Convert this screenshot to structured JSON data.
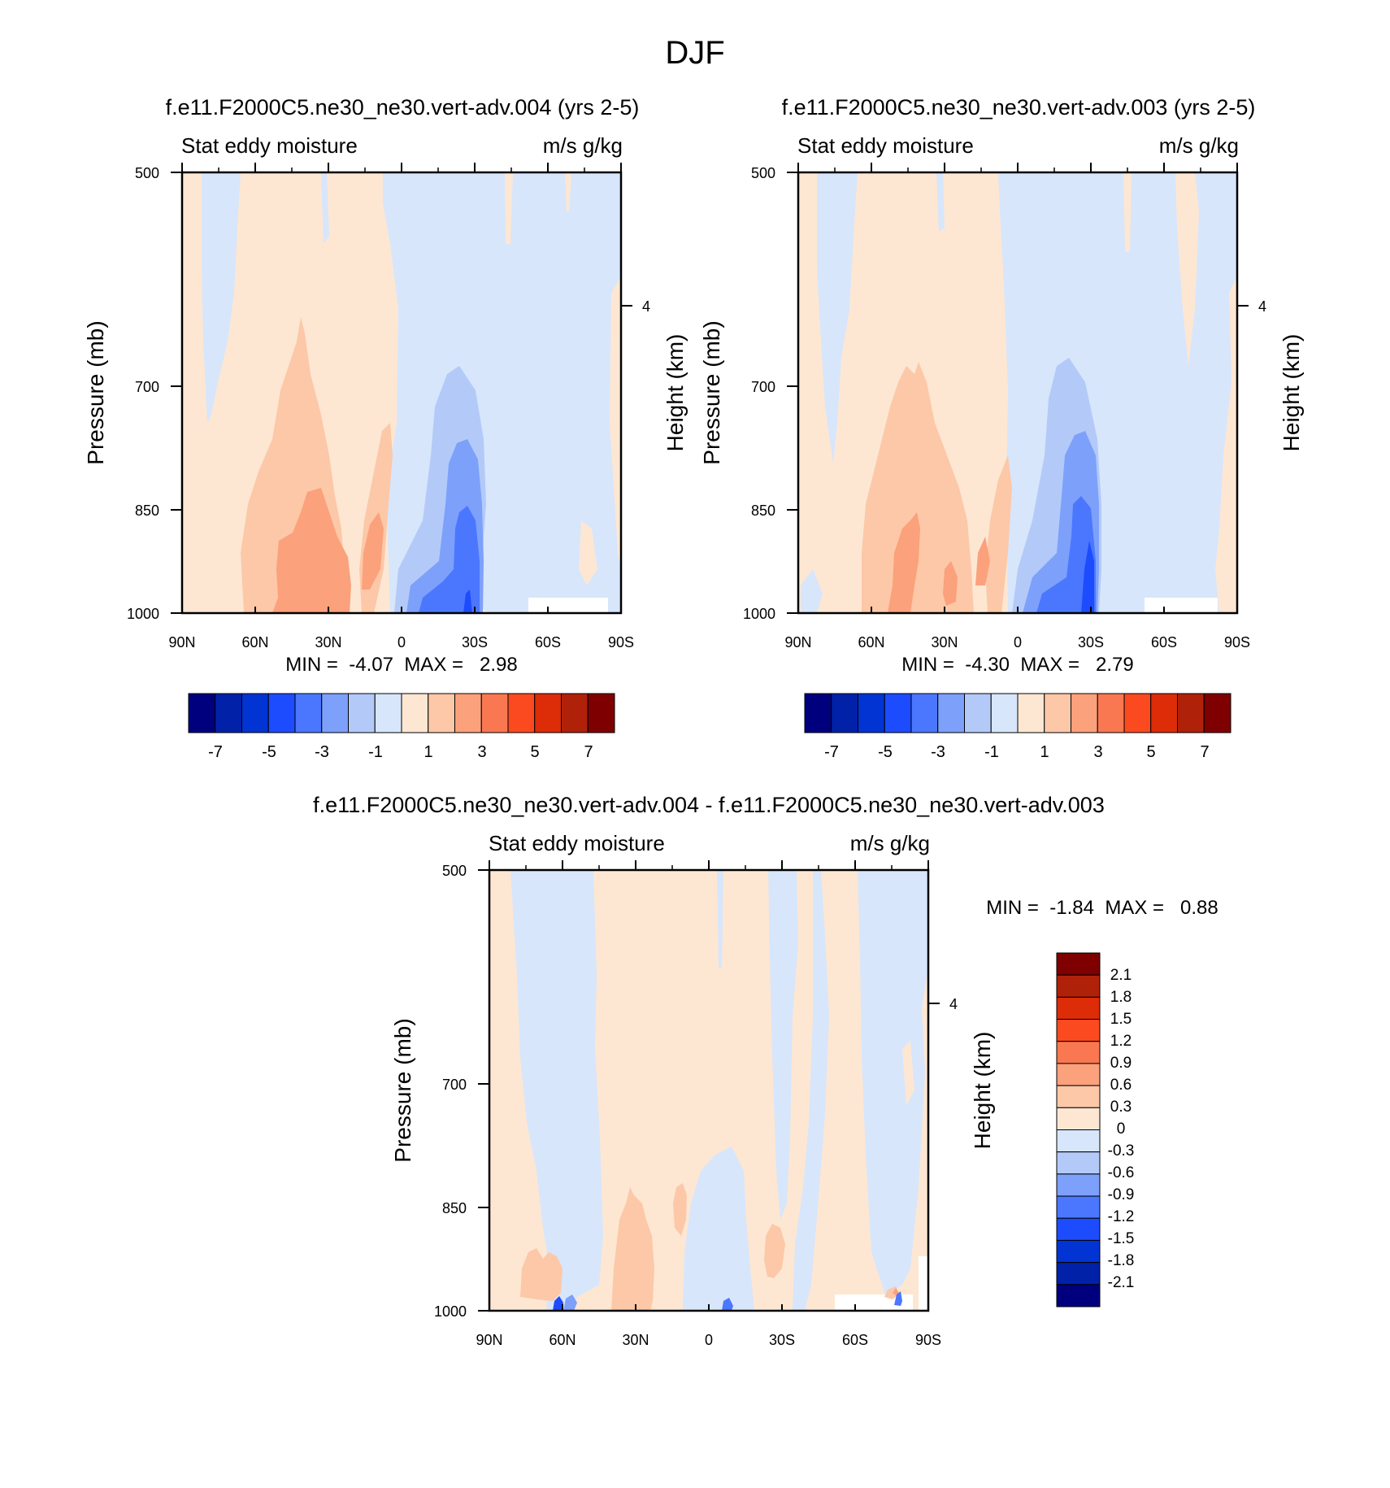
{
  "page": {
    "title": "DJF"
  },
  "palette": {
    "full": [
      "#00007f",
      "#0121a8",
      "#0234d4",
      "#1d4cff",
      "#4b77ff",
      "#7da0fb",
      "#b3caf9",
      "#d7e6fb",
      "#fde7d3",
      "#fcc8a8",
      "#fba17c",
      "#f97851",
      "#fb4a1f",
      "#dd2c08",
      "#b0210a",
      "#7f0000"
    ]
  },
  "colors": {
    "bg_blue": "#d7e6fb",
    "bg_orange": "#fde7d3",
    "lvl2_blue": "#b3caf9",
    "lvl3_blue": "#7da0fb",
    "lvl4_blue": "#4b77ff",
    "lvl5_blue": "#1d4cff",
    "lvl2_orange": "#fcc8a8",
    "lvl3_orange": "#fba17c"
  },
  "chart_data": [
    {
      "type": "heatmap",
      "id": "panel1",
      "title": "f.e11.F2000C5.ne30_ne30.vert-adv.004 (yrs 2-5)",
      "left_label": "Stat eddy moisture",
      "right_label": "m/s g/kg",
      "ylabel": "Pressure (mb)",
      "ylabel_right": "Height (km)",
      "x_ticks": [
        "90N",
        "60N",
        "30N",
        "0",
        "30S",
        "60S",
        "90S"
      ],
      "y_ticks": [
        "500",
        "700",
        "850",
        "1000"
      ],
      "y_ticks_values": [
        500,
        700,
        850,
        1000
      ],
      "right_ticks": [
        "4"
      ],
      "ylim": [
        1000,
        500
      ],
      "xlim": [
        90,
        -90
      ],
      "min_label": "MIN =  -4.07  MAX =   2.98",
      "min": -4.07,
      "max": 2.98,
      "colorbar_labels": [
        "-7",
        "-5",
        "-3",
        "-1",
        "1",
        "3",
        "5",
        "7"
      ]
    },
    {
      "type": "heatmap",
      "id": "panel2",
      "title": "f.e11.F2000C5.ne30_ne30.vert-adv.003 (yrs 2-5)",
      "left_label": "Stat eddy moisture",
      "right_label": "m/s g/kg",
      "ylabel": "Pressure (mb)",
      "ylabel_right": "Height (km)",
      "x_ticks": [
        "90N",
        "60N",
        "30N",
        "0",
        "30S",
        "60S",
        "90S"
      ],
      "y_ticks": [
        "500",
        "700",
        "850",
        "1000"
      ],
      "y_ticks_values": [
        500,
        700,
        850,
        1000
      ],
      "right_ticks": [
        "4"
      ],
      "ylim": [
        1000,
        500
      ],
      "xlim": [
        90,
        -90
      ],
      "min_label": "MIN =  -4.30  MAX =   2.79",
      "min": -4.3,
      "max": 2.79,
      "colorbar_labels": [
        "-7",
        "-5",
        "-3",
        "-1",
        "1",
        "3",
        "5",
        "7"
      ]
    },
    {
      "type": "heatmap",
      "id": "panel3",
      "title": "f.e11.F2000C5.ne30_ne30.vert-adv.004 - f.e11.F2000C5.ne30_ne30.vert-adv.003",
      "left_label": "Stat eddy moisture",
      "right_label": "m/s g/kg",
      "ylabel": "Pressure (mb)",
      "ylabel_right": "Height (km)",
      "x_ticks": [
        "90N",
        "60N",
        "30N",
        "0",
        "30S",
        "60S",
        "90S"
      ],
      "y_ticks": [
        "500",
        "700",
        "850",
        "1000"
      ],
      "y_ticks_values": [
        500,
        700,
        850,
        1000
      ],
      "right_ticks": [
        "4"
      ],
      "ylim": [
        1000,
        500
      ],
      "xlim": [
        90,
        -90
      ],
      "min_label": "MIN =  -1.84  MAX =   0.88",
      "min": -1.84,
      "max": 0.88,
      "colorbar_labels": [
        "2.1",
        "1.8",
        "1.5",
        "1.2",
        "0.9",
        "0.6",
        "0.3",
        "0",
        "-0.3",
        "-0.6",
        "-0.9",
        "-1.2",
        "-1.5",
        "-1.8",
        "-2.1"
      ]
    }
  ]
}
